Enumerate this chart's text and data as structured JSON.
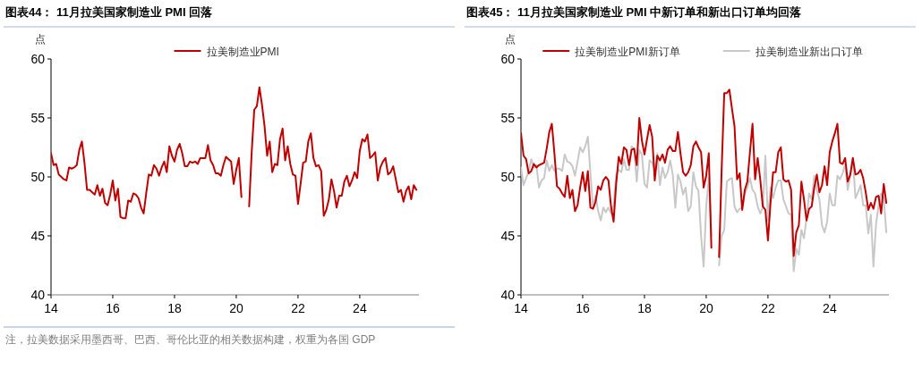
{
  "chart_data": [
    {
      "type": "line",
      "title": "图表44：  11月拉美国家制造业 PMI 回落",
      "ylabel": "点",
      "legend": "top",
      "x": [
        "2014-01",
        "2014-02",
        "2014-03",
        "2014-04",
        "2014-05",
        "2014-06",
        "2014-07",
        "2014-08",
        "2014-09",
        "2014-10",
        "2014-11",
        "2014-12",
        "2015-01",
        "2015-02",
        "2015-03",
        "2015-04",
        "2015-05",
        "2015-06",
        "2015-07",
        "2015-08",
        "2015-09",
        "2015-10",
        "2015-11",
        "2015-12",
        "2016-01",
        "2016-02",
        "2016-03",
        "2016-04",
        "2016-05",
        "2016-06",
        "2016-07",
        "2016-08",
        "2016-09",
        "2016-10",
        "2016-11",
        "2016-12",
        "2017-01",
        "2017-02",
        "2017-03",
        "2017-04",
        "2017-05",
        "2017-06",
        "2017-07",
        "2017-08",
        "2017-09",
        "2017-10",
        "2017-11",
        "2017-12",
        "2018-01",
        "2018-02",
        "2018-03",
        "2018-04",
        "2018-05",
        "2018-06",
        "2018-07",
        "2018-08",
        "2018-09",
        "2018-10",
        "2018-11",
        "2018-12",
        "2019-01",
        "2019-02",
        "2019-03",
        "2019-04",
        "2019-05",
        "2019-06",
        "2019-07",
        "2019-08",
        "2019-09",
        "2019-10",
        "2019-11",
        "2019-12",
        "2020-01",
        "2020-02",
        "2020-03",
        "2020-04",
        "2020-05",
        "2020-06",
        "2020-07",
        "2020-08",
        "2020-09",
        "2020-10",
        "2020-11",
        "2020-12",
        "2021-01",
        "2021-02",
        "2021-03",
        "2021-04",
        "2021-05",
        "2021-06",
        "2021-07",
        "2021-08",
        "2021-09",
        "2021-10",
        "2021-11",
        "2021-12",
        "2022-01",
        "2022-02",
        "2022-03",
        "2022-04",
        "2022-05",
        "2022-06",
        "2022-07",
        "2022-08",
        "2022-09",
        "2022-10",
        "2022-11",
        "2022-12",
        "2023-01",
        "2023-02",
        "2023-03",
        "2023-04",
        "2023-05",
        "2023-06",
        "2023-07",
        "2023-08",
        "2023-09",
        "2023-10",
        "2023-11",
        "2023-12",
        "2024-01",
        "2024-02",
        "2024-03",
        "2024-04",
        "2024-05",
        "2024-06",
        "2024-07",
        "2024-08",
        "2024-09",
        "2024-10",
        "2024-11",
        "2024-12",
        "2025-01",
        "2025-02",
        "2025-03",
        "2025-04",
        "2025-05",
        "2025-06",
        "2025-07",
        "2025-08",
        "2025-09",
        "2025-10",
        "2025-11"
      ],
      "series": [
        {
          "name": "拉美制造业PMI",
          "color": "#c00000",
          "values": [
            52.0,
            51.0,
            51.1,
            50.2,
            50.0,
            49.8,
            49.7,
            50.8,
            50.7,
            50.8,
            51.0,
            52.3,
            53.0,
            51.2,
            48.9,
            48.9,
            48.7,
            48.5,
            49.3,
            48.4,
            49.0,
            47.8,
            47.6,
            48.5,
            49.7,
            48.0,
            49.0,
            46.6,
            46.5,
            46.5,
            48.0,
            47.9,
            48.6,
            48.5,
            48.2,
            47.4,
            46.9,
            48.6,
            50.2,
            50.1,
            51.0,
            50.7,
            50.1,
            50.8,
            51.3,
            50.4,
            52.6,
            51.8,
            51.3,
            52.3,
            52.8,
            52.0,
            50.9,
            50.9,
            51.3,
            51.2,
            51.3,
            51.1,
            51.6,
            51.6,
            51.6,
            52.7,
            51.4,
            51.0,
            50.3,
            50.3,
            50.1,
            51.0,
            51.7,
            51.5,
            51.3,
            49.4,
            50.6,
            51.6,
            48.3,
            null,
            null,
            47.5,
            52.1,
            55.7,
            56.0,
            57.6,
            56.1,
            54.3,
            51.8,
            53.0,
            50.4,
            51.1,
            51.0,
            53.2,
            54.1,
            51.4,
            52.6,
            51.1,
            50.2,
            50.1,
            47.7,
            49.4,
            51.2,
            51.3,
            53.0,
            53.7,
            51.6,
            50.9,
            51.0,
            50.5,
            46.7,
            47.2,
            48.1,
            49.8,
            48.8,
            47.4,
            48.4,
            48.4,
            49.6,
            50.1,
            49.2,
            49.7,
            50.4,
            49.9,
            52.2,
            53.2,
            53.0,
            53.6,
            51.6,
            51.8,
            52.1,
            49.7,
            50.8,
            51.3,
            51.6,
            50.2,
            50.4,
            50.9,
            49.8,
            48.7,
            48.9,
            47.9,
            48.8,
            49.2,
            48.1,
            49.3,
            48.9
          ]
        }
      ],
      "xlim": [
        "2014-01",
        "2025-12"
      ],
      "xticks": [
        {
          "value": "2014-01",
          "label": "14"
        },
        {
          "value": "2016-01",
          "label": "16"
        },
        {
          "value": "2018-01",
          "label": "18"
        },
        {
          "value": "2020-01",
          "label": "20"
        },
        {
          "value": "2022-01",
          "label": "22"
        },
        {
          "value": "2024-01",
          "label": "24"
        }
      ],
      "ylim": [
        40,
        60
      ],
      "yticks": [
        40,
        45,
        50,
        55,
        60
      ],
      "annotations": [
        "注，拉美数据采用墨西哥、巴西、哥伦比亚的相关数据构建，权重为各国 GDP"
      ]
    },
    {
      "type": "line",
      "title": "图表45：  11月拉美国家制造业 PMI 中新订单和新出口订单均回落",
      "ylabel": "点",
      "legend": "top",
      "x": [
        "2014-01",
        "2014-02",
        "2014-03",
        "2014-04",
        "2014-05",
        "2014-06",
        "2014-07",
        "2014-08",
        "2014-09",
        "2014-10",
        "2014-11",
        "2014-12",
        "2015-01",
        "2015-02",
        "2015-03",
        "2015-04",
        "2015-05",
        "2015-06",
        "2015-07",
        "2015-08",
        "2015-09",
        "2015-10",
        "2015-11",
        "2015-12",
        "2016-01",
        "2016-02",
        "2016-03",
        "2016-04",
        "2016-05",
        "2016-06",
        "2016-07",
        "2016-08",
        "2016-09",
        "2016-10",
        "2016-11",
        "2016-12",
        "2017-01",
        "2017-02",
        "2017-03",
        "2017-04",
        "2017-05",
        "2017-06",
        "2017-07",
        "2017-08",
        "2017-09",
        "2017-10",
        "2017-11",
        "2017-12",
        "2018-01",
        "2018-02",
        "2018-03",
        "2018-04",
        "2018-05",
        "2018-06",
        "2018-07",
        "2018-08",
        "2018-09",
        "2018-10",
        "2018-11",
        "2018-12",
        "2019-01",
        "2019-02",
        "2019-03",
        "2019-04",
        "2019-05",
        "2019-06",
        "2019-07",
        "2019-08",
        "2019-09",
        "2019-10",
        "2019-11",
        "2019-12",
        "2020-01",
        "2020-02",
        "2020-03",
        "2020-04",
        "2020-05",
        "2020-06",
        "2020-07",
        "2020-08",
        "2020-09",
        "2020-10",
        "2020-11",
        "2020-12",
        "2021-01",
        "2021-02",
        "2021-03",
        "2021-04",
        "2021-05",
        "2021-06",
        "2021-07",
        "2021-08",
        "2021-09",
        "2021-10",
        "2021-11",
        "2021-12",
        "2022-01",
        "2022-02",
        "2022-03",
        "2022-04",
        "2022-05",
        "2022-06",
        "2022-07",
        "2022-08",
        "2022-09",
        "2022-10",
        "2022-11",
        "2022-12",
        "2023-01",
        "2023-02",
        "2023-03",
        "2023-04",
        "2023-05",
        "2023-06",
        "2023-07",
        "2023-08",
        "2023-09",
        "2023-10",
        "2023-11",
        "2023-12",
        "2024-01",
        "2024-02",
        "2024-03",
        "2024-04",
        "2024-05",
        "2024-06",
        "2024-07",
        "2024-08",
        "2024-09",
        "2024-10",
        "2024-11",
        "2024-12",
        "2025-01",
        "2025-02",
        "2025-03",
        "2025-04",
        "2025-05",
        "2025-06",
        "2025-07",
        "2025-08",
        "2025-09",
        "2025-10",
        "2025-11"
      ],
      "series": [
        {
          "name": "拉美制造业PMI新订单",
          "color": "#c00000",
          "values": [
            53.7,
            51.8,
            51.5,
            50.3,
            50.5,
            51.1,
            50.8,
            51.0,
            51.1,
            51.2,
            52.4,
            53.8,
            54.5,
            52.0,
            49.2,
            49.0,
            48.6,
            48.3,
            50.1,
            48.2,
            48.9,
            47.1,
            47.6,
            49.1,
            50.4,
            48.8,
            50.5,
            47.4,
            47.3,
            47.9,
            49.2,
            48.9,
            49.7,
            50.0,
            49.7,
            47.5,
            46.2,
            49.4,
            51.7,
            51.1,
            52.5,
            52.3,
            51.0,
            52.3,
            52.4,
            51.0,
            55.0,
            53.1,
            51.9,
            53.2,
            54.4,
            53.4,
            49.7,
            51.8,
            51.4,
            51.9,
            51.2,
            52.3,
            52.6,
            52.2,
            52.2,
            53.8,
            52.0,
            50.4,
            50.1,
            50.4,
            51.0,
            52.6,
            53.0,
            52.5,
            52.1,
            49.1,
            50.1,
            52.0,
            44.0,
            null,
            null,
            43.2,
            50.6,
            57.1,
            57.1,
            57.4,
            55.8,
            54.3,
            49.8,
            50.3,
            47.2,
            48.9,
            49.6,
            52.1,
            54.5,
            49.8,
            51.6,
            49.8,
            47.5,
            47.2,
            44.6,
            47.8,
            50.4,
            50.4,
            52.1,
            52.5,
            49.8,
            49.6,
            49.7,
            48.9,
            43.3,
            45.3,
            45.9,
            49.6,
            48.1,
            46.3,
            47.3,
            47.5,
            49.1,
            50.2,
            48.7,
            49.3,
            50.9,
            49.3,
            52.1,
            53.0,
            53.7,
            54.5,
            51.2,
            51.1,
            51.6,
            49.6,
            50.2,
            51.6,
            50.2,
            50.3,
            50.6,
            49.9,
            48.7,
            47.2,
            47.8,
            47.3,
            48.3,
            48.4,
            46.9,
            49.4,
            47.8
          ]
        },
        {
          "name": "拉美制造业新出口订单",
          "color": "#c8c8c8",
          "values": [
            50.8,
            49.3,
            49.9,
            50.4,
            51.5,
            50.8,
            51.0,
            49.1,
            49.7,
            49.9,
            51.4,
            50.5,
            51.0,
            50.5,
            50.7,
            50.7,
            50.5,
            51.9,
            51.3,
            51.2,
            50.9,
            50.1,
            51.3,
            52.5,
            52.1,
            52.6,
            53.4,
            50.3,
            47.4,
            48.4,
            47.1,
            46.3,
            47.4,
            47.0,
            47.4,
            46.9,
            47.6,
            50.2,
            50.6,
            50.4,
            51.5,
            50.6,
            50.6,
            52.6,
            52.3,
            49.6,
            52.3,
            51.9,
            49.4,
            49.1,
            51.4,
            51.2,
            50.6,
            52.0,
            49.3,
            50.8,
            49.9,
            50.4,
            51.4,
            50.2,
            47.4,
            50.2,
            49.6,
            48.5,
            49.1,
            47.1,
            47.5,
            50.4,
            49.2,
            48.8,
            45.0,
            42.4,
            47.5,
            49.9,
            45.0,
            null,
            null,
            42.5,
            45.0,
            45.5,
            49.6,
            49.8,
            49.9,
            47.5,
            47.0,
            47.3,
            47.4,
            48.6,
            49.1,
            49.9,
            48.9,
            48.6,
            47.5,
            46.9,
            47.4,
            51.8,
            46.3,
            49.1,
            48.2,
            49.1,
            49.7,
            49.7,
            48.1,
            47.5,
            46.9,
            46.8,
            42.0,
            43.9,
            43.4,
            45.5,
            44.8,
            46.5,
            48.6,
            48.1,
            50.1,
            48.9,
            48.1,
            45.9,
            45.3,
            46.2,
            48.6,
            47.6,
            47.6,
            50.1,
            49.8,
            50.3,
            51.1,
            48.9,
            50.1,
            51.6,
            48.2,
            48.7,
            49.3,
            47.6,
            47.6,
            45.2,
            46.8,
            42.4,
            46.0,
            47.6,
            48.6,
            48.2,
            45.3
          ]
        }
      ],
      "xlim": [
        "2014-01",
        "2025-12"
      ],
      "xticks": [
        {
          "value": "2014-01",
          "label": "14"
        },
        {
          "value": "2016-01",
          "label": "16"
        },
        {
          "value": "2018-01",
          "label": "18"
        },
        {
          "value": "2020-01",
          "label": "20"
        },
        {
          "value": "2022-01",
          "label": "22"
        },
        {
          "value": "2024-01",
          "label": "24"
        }
      ],
      "ylim": [
        40,
        60
      ],
      "yticks": [
        40,
        45,
        50,
        55,
        60
      ]
    }
  ]
}
